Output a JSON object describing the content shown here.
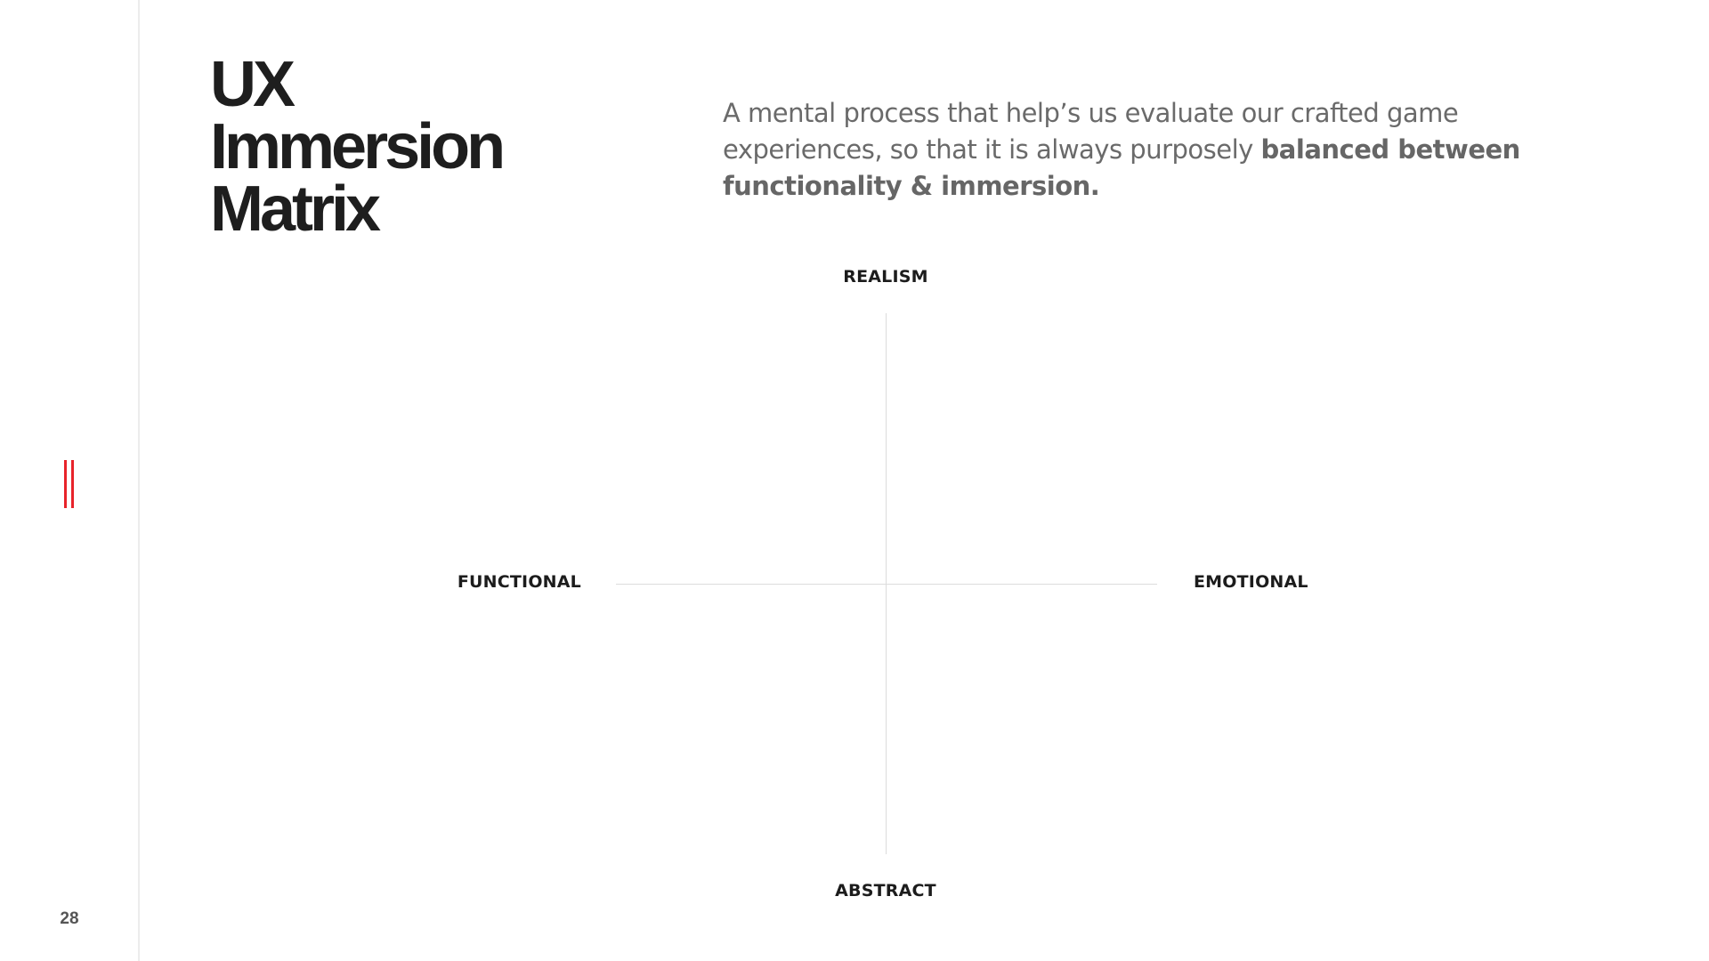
{
  "slide": {
    "page_number": "28",
    "title_lines": [
      "UX",
      "Immersion",
      "Matrix"
    ],
    "description": {
      "regular": "A mental process that help’s us evaluate our crafted game experiences, so that it is always purposely ",
      "bold": "balanced between functionality & immersion."
    },
    "accent_color": "#e8232a"
  },
  "matrix": {
    "top_label": "REALISM",
    "bottom_label": "ABSTRACT",
    "left_label": "FUNCTIONAL",
    "right_label": "EMOTIONAL"
  }
}
